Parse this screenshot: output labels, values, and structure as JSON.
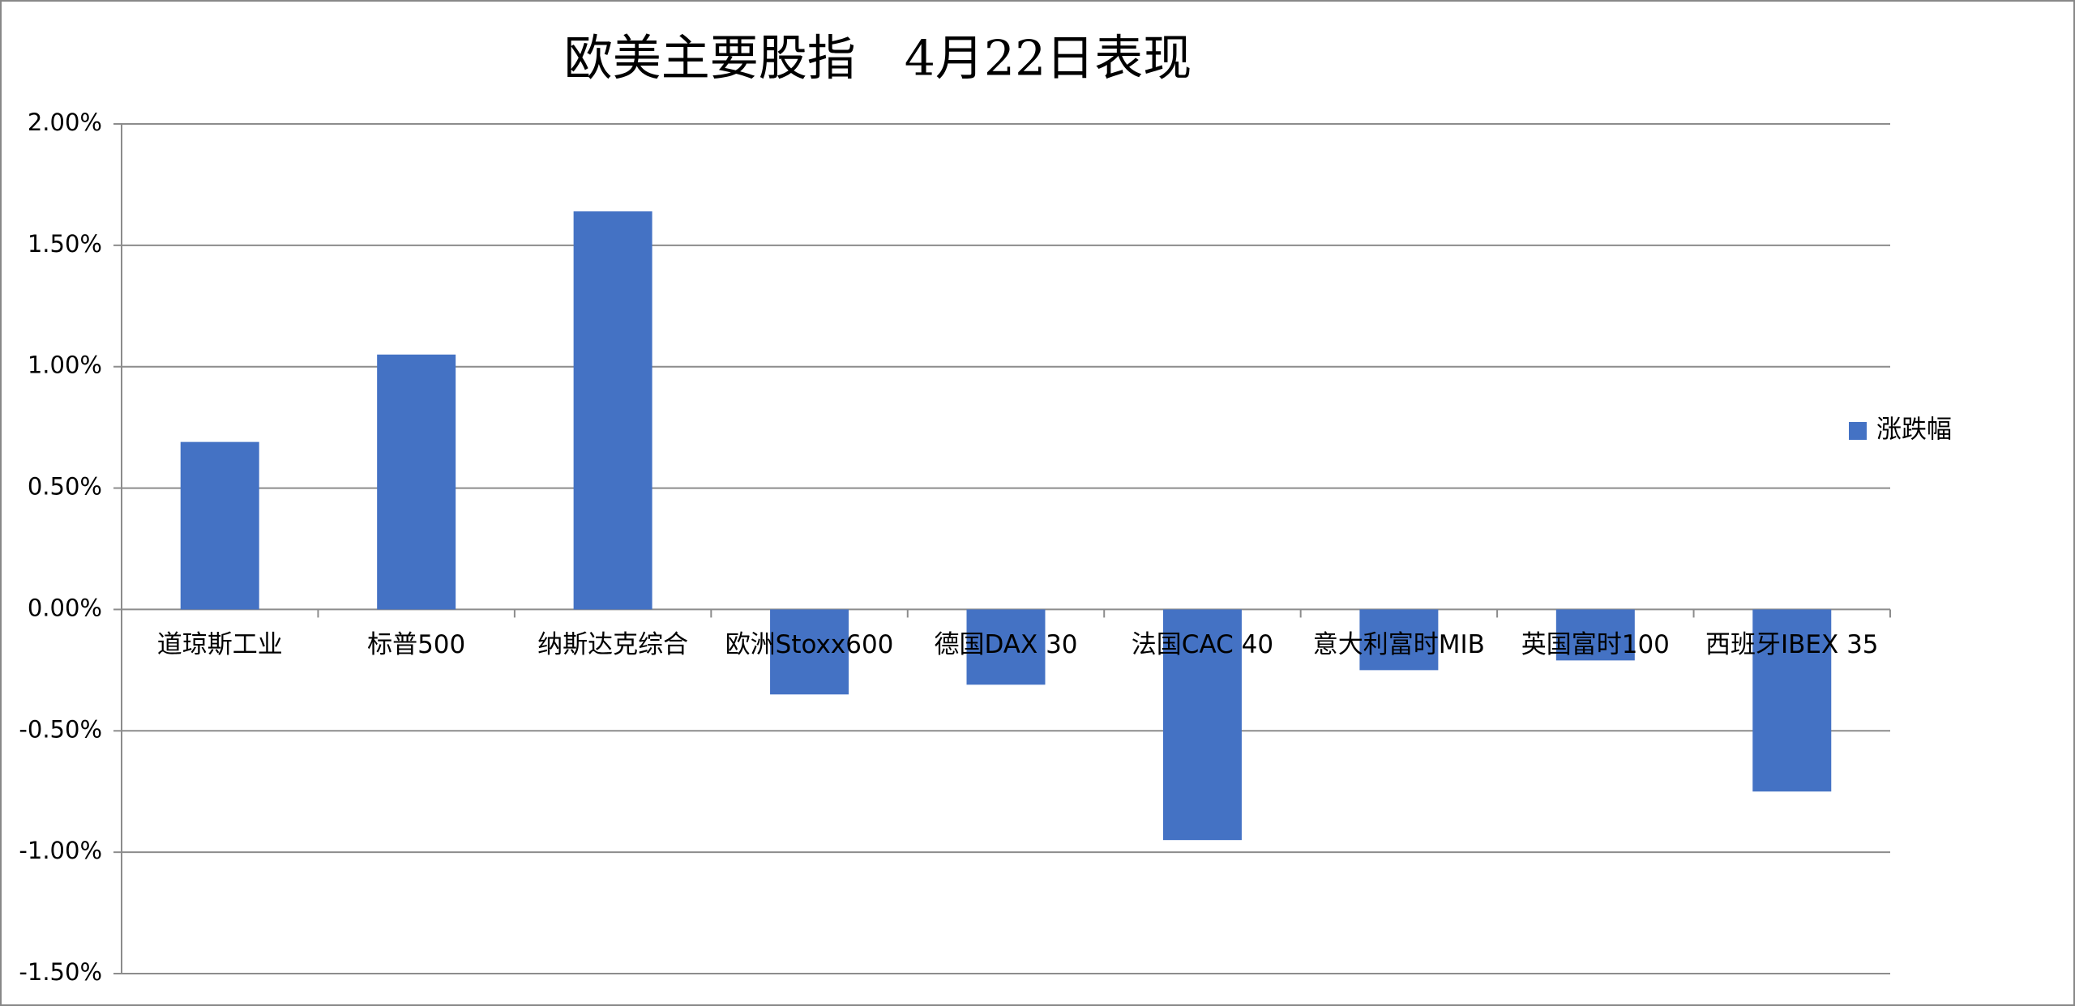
{
  "chart_data": {
    "type": "bar",
    "title": "欧美主要股指　4月22日表现",
    "categories": [
      "道琼斯工业",
      "标普500",
      "纳斯达克综合",
      "欧洲Stoxx600",
      "德国DAX 30",
      "法国CAC 40",
      "意大利富时MIB",
      "英国富时100",
      "西班牙IBEX 35"
    ],
    "series": [
      {
        "name": "涨跌幅",
        "color": "#4472c4",
        "values": [
          0.69,
          1.05,
          1.64,
          -0.35,
          -0.31,
          -0.95,
          -0.25,
          -0.21,
          -0.75
        ]
      }
    ],
    "ylim": [
      -1.5,
      2
    ],
    "yticks": [
      {
        "value": 2,
        "label": "2.00%"
      },
      {
        "value": 1.5,
        "label": "1.50%"
      },
      {
        "value": 1,
        "label": "1.00%"
      },
      {
        "value": 0.5,
        "label": "0.50%"
      },
      {
        "value": 0,
        "label": "0.00%"
      },
      {
        "value": -0.5,
        "label": "-0.50%"
      },
      {
        "value": -1,
        "label": "-1.00%"
      },
      {
        "value": -1.5,
        "label": "-1.50%"
      }
    ],
    "grid": true,
    "legend": "right"
  }
}
